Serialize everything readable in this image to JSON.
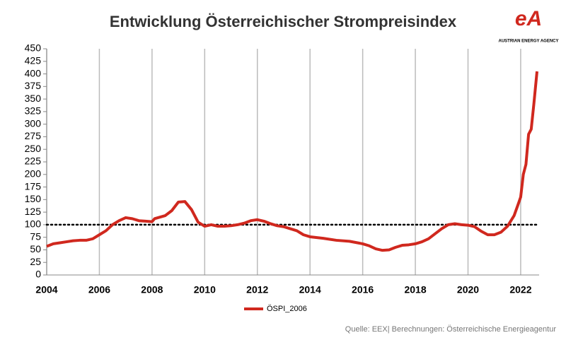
{
  "chart_data": {
    "type": "line",
    "title": "Entwicklung Österreichischer Strompreisindex",
    "logo": "AUSTRIAN ENERGY AGENCY",
    "source": "Quelle: EEX| Berechnungen: Österreichische Energieagentur",
    "x": [
      2004.0,
      2004.25,
      2004.5,
      2004.75,
      2005.0,
      2005.25,
      2005.5,
      2005.75,
      2006.0,
      2006.25,
      2006.5,
      2006.75,
      2007.0,
      2007.25,
      2007.5,
      2007.75,
      2008.0,
      2008.1,
      2008.5,
      2008.75,
      2009.0,
      2009.25,
      2009.5,
      2009.75,
      2010.0,
      2010.25,
      2010.5,
      2010.75,
      2011.0,
      2011.25,
      2011.5,
      2011.75,
      2012.0,
      2012.25,
      2012.5,
      2012.75,
      2013.0,
      2013.25,
      2013.5,
      2013.75,
      2014.0,
      2014.5,
      2015.0,
      2015.5,
      2016.0,
      2016.25,
      2016.5,
      2016.75,
      2017.0,
      2017.25,
      2017.5,
      2017.75,
      2018.0,
      2018.25,
      2018.5,
      2018.75,
      2019.0,
      2019.25,
      2019.5,
      2019.75,
      2020.0,
      2020.25,
      2020.5,
      2020.75,
      2021.0,
      2021.25,
      2021.5,
      2021.75,
      2021.9,
      2022.0,
      2022.1,
      2022.2,
      2022.3,
      2022.4,
      2022.5,
      2022.62
    ],
    "series": [
      {
        "name": "ÖSPI_2006",
        "color": "#d0281e",
        "values": [
          57,
          62,
          64,
          66,
          68,
          69,
          69,
          72,
          80,
          88,
          100,
          108,
          114,
          112,
          108,
          107,
          106,
          112,
          118,
          128,
          145,
          146,
          130,
          105,
          97,
          100,
          97,
          97,
          98,
          100,
          103,
          108,
          110,
          107,
          102,
          98,
          96,
          92,
          88,
          80,
          76,
          73,
          69,
          67,
          62,
          58,
          52,
          49,
          50,
          55,
          59,
          60,
          62,
          66,
          72,
          82,
          92,
          100,
          102,
          100,
          99,
          96,
          87,
          80,
          80,
          85,
          97,
          118,
          140,
          155,
          200,
          220,
          280,
          290,
          340,
          405
        ]
      }
    ],
    "reference_line": 100,
    "xlim": [
      2004,
      2022.7
    ],
    "xticks": [
      2004,
      2006,
      2008,
      2010,
      2012,
      2014,
      2016,
      2018,
      2020,
      2022
    ],
    "ylim": [
      0,
      450
    ],
    "yticks": [
      0,
      25,
      50,
      75,
      100,
      125,
      150,
      175,
      200,
      225,
      250,
      275,
      300,
      325,
      350,
      375,
      400,
      425,
      450
    ],
    "grid": true
  }
}
